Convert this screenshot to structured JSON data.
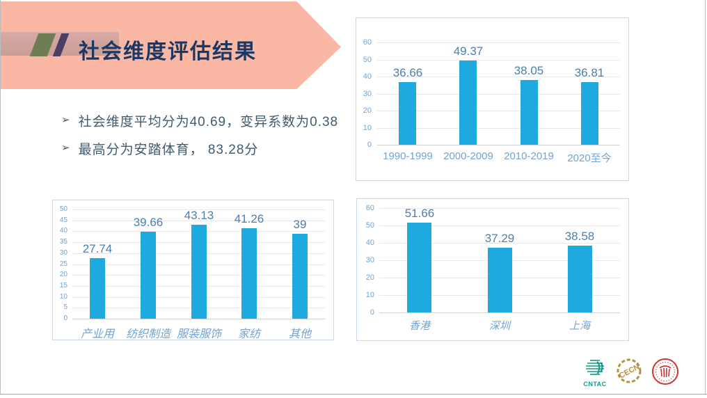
{
  "slide": {
    "title": "社会维度评估结果",
    "bullet_glyph": "➢",
    "bullets": [
      "社会维度平均分为40.69，变异系数为0.38",
      "最高分为安踏体育， 83.28分"
    ]
  },
  "colors": {
    "banner": "#FAB8A4",
    "band_top": "#D9A9A6",
    "band_bottom": "#C79F96",
    "slash_green": "#6F7D57",
    "slash_purple": "#4C3D64",
    "title": "#1C3761",
    "bullet": "#3E5C6E",
    "bar": "#1EAADF",
    "value_label": "#4E7EAE",
    "tick_label": "#72A3CF",
    "chart_border": "#C9D8E8",
    "grid": "#E8E8E8",
    "axis": "#D2D2D2",
    "edge": "#BDBDBD"
  },
  "logos": [
    {
      "name": "cntac-logo",
      "text": "CNTAC",
      "color": "#109A8C"
    },
    {
      "name": "gold-seal-logo",
      "text": "",
      "color": "#B3913F"
    },
    {
      "name": "red-seal-logo",
      "text": "",
      "color": "#CC3333"
    }
  ],
  "chart_data": [
    {
      "type": "bar",
      "title": "",
      "categories": [
        "1990-1999",
        "2000-2009",
        "2010-2019",
        "2020至今"
      ],
      "values": [
        36.66,
        49.37,
        38.05,
        36.81
      ],
      "xlabel": "",
      "ylabel": "",
      "ylim": [
        0,
        60
      ],
      "ytick_step": 10,
      "grid": true,
      "legend": "none"
    },
    {
      "type": "bar",
      "title": "",
      "categories": [
        "产业用",
        "纺织制造",
        "服装服饰",
        "家纺",
        "其他"
      ],
      "values": [
        27.74,
        39.66,
        43.13,
        41.26,
        39
      ],
      "xlabel": "",
      "ylabel": "",
      "ylim": [
        0,
        50
      ],
      "ytick_step": 5,
      "grid": true,
      "legend": "none"
    },
    {
      "type": "bar",
      "title": "",
      "categories": [
        "香港",
        "深圳",
        "上海"
      ],
      "values": [
        51.66,
        37.29,
        38.58
      ],
      "xlabel": "",
      "ylabel": "",
      "ylim": [
        0,
        60
      ],
      "ytick_step": 10,
      "grid": true,
      "legend": "none"
    }
  ]
}
